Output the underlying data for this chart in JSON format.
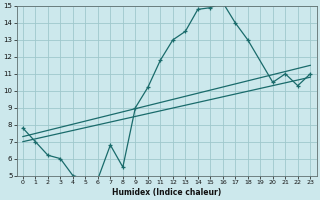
{
  "xlabel": "Humidex (Indice chaleur)",
  "bg_color": "#cce8ec",
  "grid_color": "#9fc8cc",
  "line_color": "#1a6b6b",
  "xlim": [
    -0.5,
    23.5
  ],
  "ylim": [
    5,
    15
  ],
  "xticks": [
    0,
    1,
    2,
    3,
    4,
    5,
    6,
    7,
    8,
    9,
    10,
    11,
    12,
    13,
    14,
    15,
    16,
    17,
    18,
    19,
    20,
    21,
    22,
    23
  ],
  "yticks": [
    5,
    6,
    7,
    8,
    9,
    10,
    11,
    12,
    13,
    14,
    15
  ],
  "main_x": [
    0,
    1,
    2,
    3,
    4,
    5,
    6,
    7,
    8,
    9,
    10,
    11,
    12,
    13,
    14,
    15,
    16,
    17,
    18,
    20,
    21,
    22,
    23
  ],
  "main_y": [
    7.8,
    7.0,
    6.2,
    6.0,
    5.0,
    4.8,
    4.8,
    6.8,
    5.5,
    9.0,
    10.2,
    11.8,
    13.0,
    13.5,
    14.8,
    14.9,
    15.2,
    14.0,
    13.0,
    10.5,
    11.0,
    10.3,
    11.0
  ],
  "line1_x": [
    0,
    23
  ],
  "line1_y": [
    7.3,
    11.5
  ],
  "line2_x": [
    0,
    23
  ],
  "line2_y": [
    7.0,
    10.8
  ]
}
